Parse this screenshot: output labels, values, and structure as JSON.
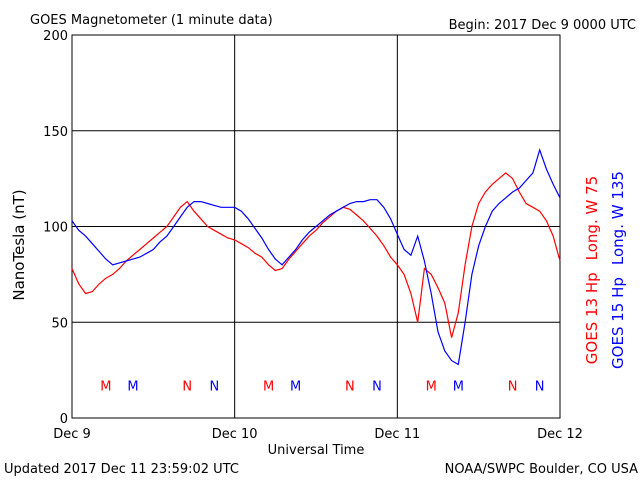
{
  "chart_data": {
    "type": "line",
    "title": "GOES Magnetometer (1 minute data)",
    "subtitle": "Begin:  2017 Dec 9 0000 UTC",
    "y_label": "NanoTesla (nT)",
    "x_label": "Universal Time",
    "footer_left": "Updated 2017 Dec 11 23:59:02 UTC",
    "footer_right": "NOAA/SWPC Boulder, CO USA",
    "xlim": [
      0,
      72
    ],
    "xticks": [
      {
        "value": 0,
        "label": "Dec 9"
      },
      {
        "value": 24,
        "label": "Dec 10"
      },
      {
        "value": 48,
        "label": "Dec 11"
      },
      {
        "value": 72,
        "label": "Dec 12"
      }
    ],
    "ylim": [
      0,
      200
    ],
    "yticks": [
      0,
      50,
      100,
      150,
      200
    ],
    "grid": true,
    "x": [
      0,
      1,
      2,
      3,
      4,
      5,
      6,
      7,
      8,
      9,
      10,
      11,
      12,
      13,
      14,
      15,
      16,
      17,
      18,
      19,
      20,
      21,
      22,
      23,
      24,
      25,
      26,
      27,
      28,
      29,
      30,
      31,
      32,
      33,
      34,
      35,
      36,
      37,
      38,
      39,
      40,
      41,
      42,
      43,
      44,
      45,
      46,
      47,
      48,
      49,
      50,
      51,
      52,
      53,
      54,
      55,
      56,
      57,
      58,
      59,
      60,
      61,
      62,
      63,
      64,
      65,
      66,
      67,
      68,
      69,
      70,
      71,
      72
    ],
    "series": [
      {
        "name": "GOES 13 Hp",
        "longitude": "Long. W 75",
        "color": "#ff0000",
        "values": [
          78,
          70,
          65,
          66,
          70,
          73,
          75,
          78,
          82,
          85,
          88,
          91,
          94,
          97,
          100,
          105,
          110,
          113,
          108,
          104,
          100,
          98,
          96,
          94,
          93,
          91,
          89,
          86,
          84,
          80,
          77,
          78,
          83,
          87,
          91,
          95,
          98,
          102,
          105,
          108,
          110,
          109,
          106,
          103,
          99,
          95,
          90,
          84,
          80,
          75,
          65,
          50,
          78,
          75,
          68,
          60,
          42,
          55,
          80,
          100,
          112,
          118,
          122,
          125,
          128,
          125,
          118,
          112,
          110,
          108,
          103,
          95,
          82
        ]
      },
      {
        "name": "GOES 15 Hp",
        "longitude": "Long. W 135",
        "color": "#0000ff",
        "values": [
          103,
          98,
          95,
          91,
          87,
          83,
          80,
          81,
          82,
          83,
          84,
          86,
          88,
          92,
          95,
          100,
          105,
          110,
          113,
          113,
          112,
          111,
          110,
          110,
          110,
          108,
          104,
          99,
          94,
          88,
          83,
          80,
          84,
          88,
          93,
          97,
          100,
          103,
          106,
          108,
          110,
          112,
          113,
          113,
          114,
          114,
          110,
          104,
          96,
          88,
          85,
          95,
          82,
          65,
          45,
          35,
          30,
          28,
          50,
          75,
          90,
          100,
          108,
          112,
          115,
          118,
          120,
          124,
          128,
          140,
          130,
          122,
          115
        ]
      }
    ],
    "annotations": [
      {
        "text": "M",
        "x": 5,
        "y": 17,
        "color": "#ff0000"
      },
      {
        "text": "M",
        "x": 9,
        "y": 17,
        "color": "#0000ff"
      },
      {
        "text": "N",
        "x": 17,
        "y": 17,
        "color": "#ff0000"
      },
      {
        "text": "N",
        "x": 21,
        "y": 17,
        "color": "#0000ff"
      },
      {
        "text": "M",
        "x": 29,
        "y": 17,
        "color": "#ff0000"
      },
      {
        "text": "M",
        "x": 33,
        "y": 17,
        "color": "#0000ff"
      },
      {
        "text": "N",
        "x": 41,
        "y": 17,
        "color": "#ff0000"
      },
      {
        "text": "N",
        "x": 45,
        "y": 17,
        "color": "#0000ff"
      },
      {
        "text": "M",
        "x": 53,
        "y": 17,
        "color": "#ff0000"
      },
      {
        "text": "M",
        "x": 57,
        "y": 17,
        "color": "#0000ff"
      },
      {
        "text": "N",
        "x": 65,
        "y": 17,
        "color": "#ff0000"
      },
      {
        "text": "N",
        "x": 69,
        "y": 17,
        "color": "#0000ff"
      }
    ]
  }
}
